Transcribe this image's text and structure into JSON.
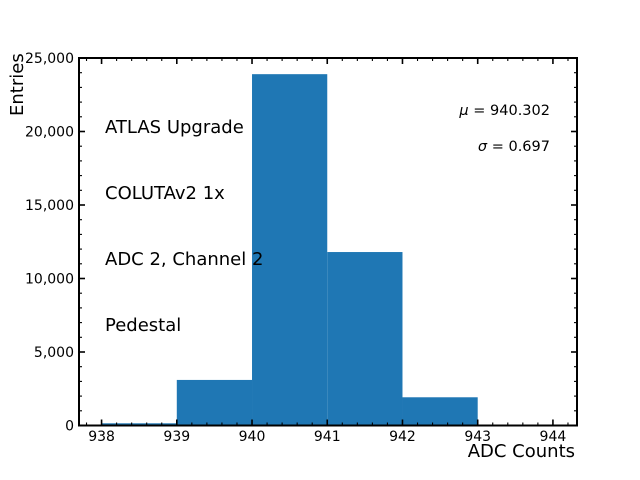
{
  "chart_data": {
    "type": "bar",
    "subtype": "histogram",
    "title": "",
    "xlabel": "ADC Counts",
    "ylabel": "Entries",
    "bin_edges": [
      938,
      939,
      940,
      941,
      942,
      943,
      944
    ],
    "counts": [
      150,
      3100,
      23900,
      11800,
      1920,
      0
    ],
    "xlim": [
      937.7,
      944.32
    ],
    "ylim": [
      0,
      25000
    ],
    "xticks": [
      {
        "value": 938,
        "label": "938"
      },
      {
        "value": 939,
        "label": "939"
      },
      {
        "value": 940,
        "label": "940"
      },
      {
        "value": 941,
        "label": "941"
      },
      {
        "value": 942,
        "label": "942"
      },
      {
        "value": 943,
        "label": "943"
      },
      {
        "value": 944,
        "label": "944"
      }
    ],
    "yticks": [
      {
        "value": 0,
        "label": "0"
      },
      {
        "value": 5000,
        "label": "5,000"
      },
      {
        "value": 10000,
        "label": "10,000"
      },
      {
        "value": 15000,
        "label": "15,000"
      },
      {
        "value": 20000,
        "label": "20,000"
      },
      {
        "value": 25000,
        "label": "25,000"
      }
    ],
    "minor_x_step": 0.2,
    "minor_y_step": 1000,
    "grid": false,
    "legend": "none",
    "bar_color": "#1f77b4",
    "axis_color": "#000000",
    "annotation_lines": {
      "line1": "ATLAS Upgrade",
      "line2": "COLUTAv2 1x",
      "line3": "ADC 2, Channel 2",
      "line4": "Pedestal"
    },
    "stats": {
      "mu": "μ = 940.302",
      "sigma": "σ = 0.697"
    }
  }
}
